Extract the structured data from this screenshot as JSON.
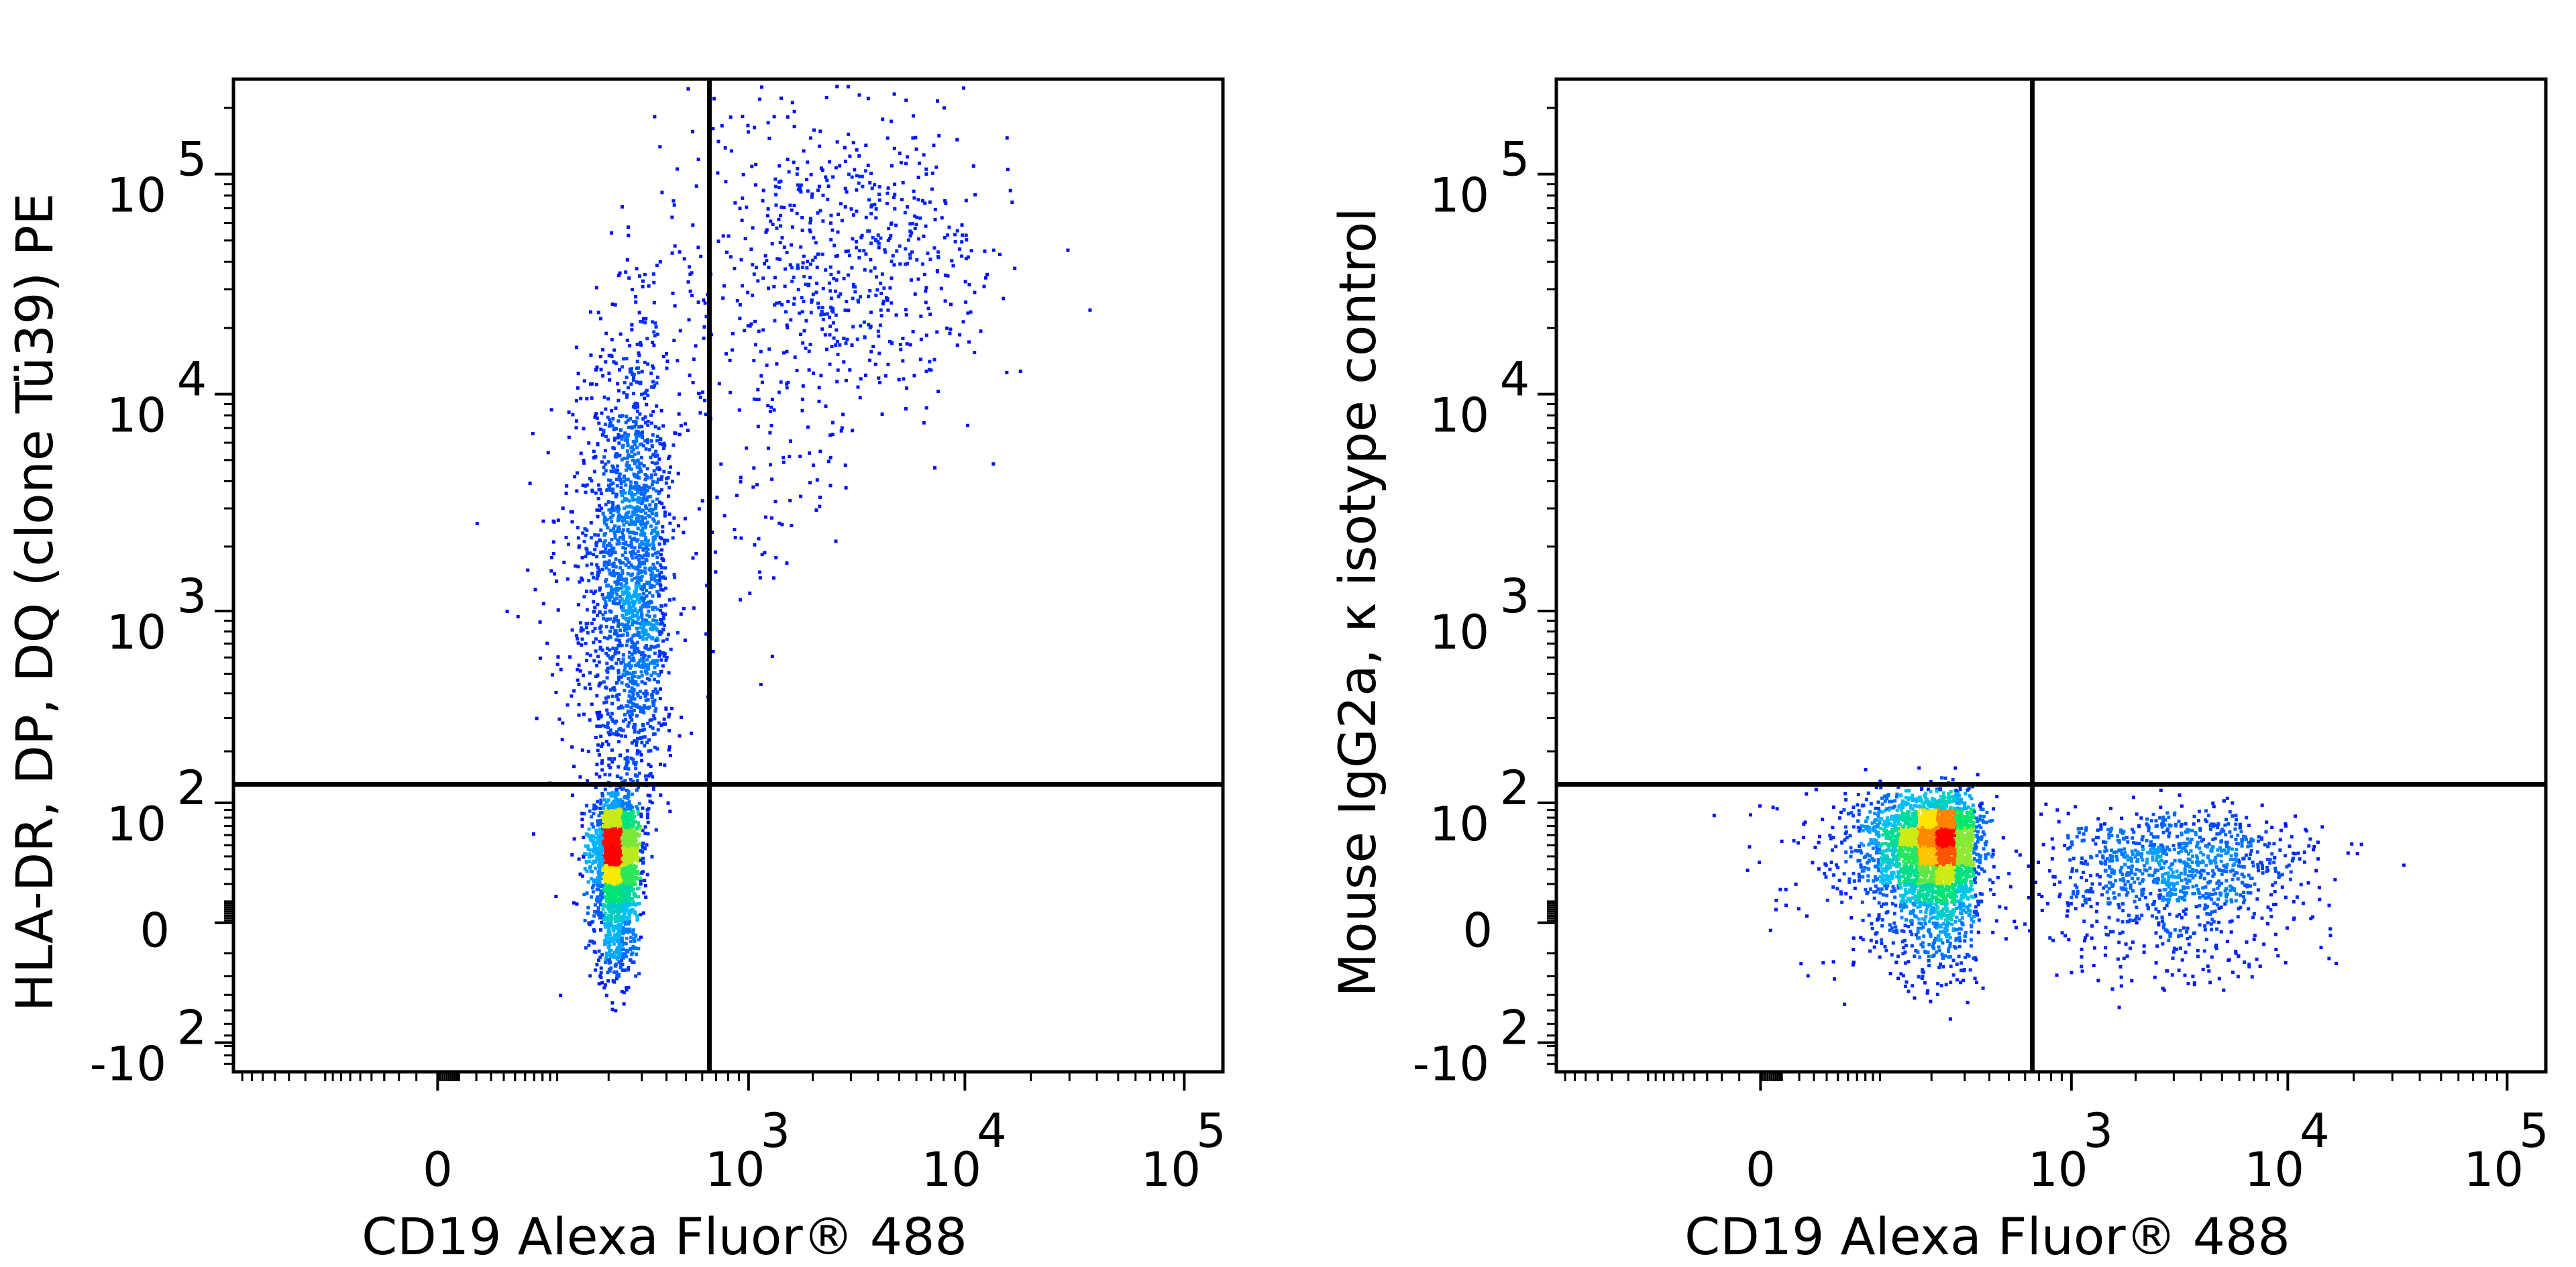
{
  "figure": {
    "background": "#ffffff",
    "gate_color": "#000000"
  },
  "chart_data": [
    {
      "type": "scatter",
      "style": "density-pseudocolor",
      "xlabel": "CD19 Alexa Fluor® 488",
      "ylabel": "HLA-DR, DP, DQ (clone Tü39) PE",
      "x_scale": "biexponential",
      "y_scale": "biexponential",
      "xlim": [
        -300,
        150000
      ],
      "ylim": [
        -150,
        270000
      ],
      "x_ticks": [
        {
          "value": 0,
          "base": "0",
          "exp": ""
        },
        {
          "value": 1000,
          "base": "10",
          "exp": "3"
        },
        {
          "value": 10000,
          "base": "10",
          "exp": "4"
        },
        {
          "value": 100000,
          "base": "10",
          "exp": "5"
        }
      ],
      "y_ticks": [
        {
          "value": -100,
          "base": "-10",
          "exp": "2"
        },
        {
          "value": 0,
          "base": "0",
          "exp": ""
        },
        {
          "value": 100,
          "base": "10",
          "exp": "2"
        },
        {
          "value": 1000,
          "base": "10",
          "exp": "3"
        },
        {
          "value": 10000,
          "base": "10",
          "exp": "4"
        },
        {
          "value": 100000,
          "base": "10",
          "exp": "5"
        }
      ],
      "quadrant_gate": {
        "x": 650,
        "y": 130
      },
      "color_scale": [
        "#0000ff",
        "#00ccff",
        "#00ff66",
        "#ffff00",
        "#ff0000"
      ],
      "populations": [
        {
          "name": "",
          "x": [
            220,
            30
          ],
          "y": [
            40,
            30
          ],
          "n": 2600,
          "tail": false
        },
        {
          "name": "",
          "x": [
            260,
            70
          ],
          "y": [
            1400,
            0.55
          ],
          "n": 2200,
          "tail": true
        },
        {
          "name": "",
          "x": [
            3200,
            0.3
          ],
          "y": [
            40000,
            0.35
          ],
          "n": 550,
          "tail": false
        }
      ]
    },
    {
      "type": "scatter",
      "style": "density-pseudocolor",
      "xlabel": "CD19 Alexa Fluor® 488",
      "ylabel": "Mouse IgG2a, κ isotype control",
      "x_scale": "biexponential",
      "y_scale": "biexponential",
      "xlim": [
        -300,
        150000
      ],
      "ylim": [
        -150,
        270000
      ],
      "x_ticks": [
        {
          "value": 0,
          "base": "0",
          "exp": ""
        },
        {
          "value": 1000,
          "base": "10",
          "exp": "3"
        },
        {
          "value": 10000,
          "base": "10",
          "exp": "4"
        },
        {
          "value": 100000,
          "base": "10",
          "exp": "5"
        }
      ],
      "y_ticks": [
        {
          "value": -100,
          "base": "-10",
          "exp": "2"
        },
        {
          "value": 0,
          "base": "0",
          "exp": ""
        },
        {
          "value": 100,
          "base": "10",
          "exp": "2"
        },
        {
          "value": 1000,
          "base": "10",
          "exp": "3"
        },
        {
          "value": 10000,
          "base": "10",
          "exp": "4"
        },
        {
          "value": 100000,
          "base": "10",
          "exp": "5"
        }
      ],
      "quadrant_gate": {
        "x": 650,
        "y": 130
      },
      "color_scale": [
        "#0000ff",
        "#00ccff",
        "#00ff66",
        "#ffff00",
        "#ff0000"
      ],
      "populations": [
        {
          "name": "",
          "x": [
            200,
            70
          ],
          "y": [
            45,
            32
          ],
          "n": 3200,
          "tail": false
        },
        {
          "name": "",
          "x": [
            3000,
            0.3
          ],
          "y": [
            30,
            28
          ],
          "n": 1100,
          "tail": false
        }
      ]
    }
  ]
}
